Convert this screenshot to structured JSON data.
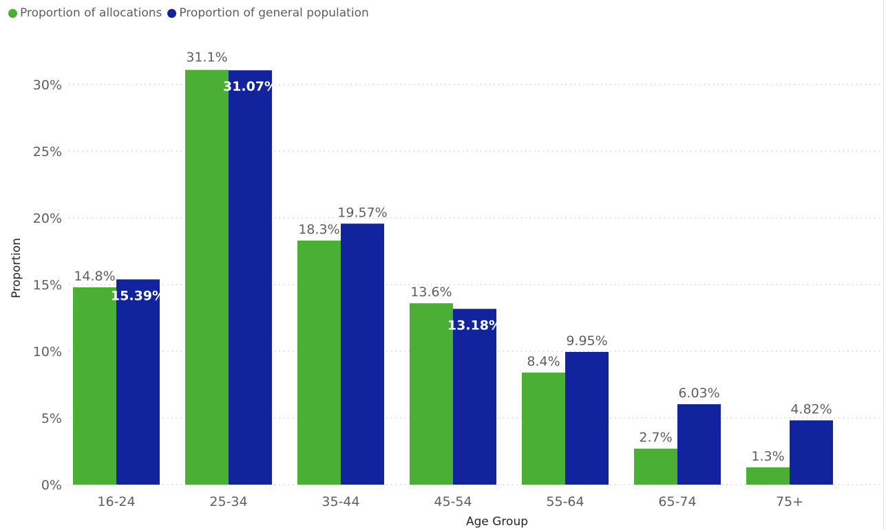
{
  "chart_data": {
    "type": "bar",
    "categories": [
      "16-24",
      "25-34",
      "35-44",
      "45-54",
      "55-64",
      "65-74",
      "75+"
    ],
    "series": [
      {
        "name": "Proportion of allocations",
        "color": "#4caf35",
        "values": [
          14.8,
          31.1,
          18.3,
          13.6,
          8.4,
          2.7,
          1.3
        ],
        "labels": [
          "14.8%",
          "31.1%",
          "18.3%",
          "13.6%",
          "8.4%",
          "2.7%",
          "1.3%"
        ]
      },
      {
        "name": "Proportion of general population",
        "color": "#12239e",
        "values": [
          15.39,
          31.07,
          19.57,
          13.18,
          9.95,
          6.03,
          4.82
        ],
        "labels": [
          "15.39%",
          "31.07%",
          "19.57%",
          "13.18%",
          "9.95%",
          "6.03%",
          "4.82%"
        ]
      }
    ],
    "xlabel": "Age Group",
    "ylabel": "Proportion",
    "ylim": [
      0,
      30
    ],
    "yticks": [
      0,
      5,
      10,
      15,
      20,
      25,
      30
    ],
    "ytick_labels": [
      "0%",
      "5%",
      "10%",
      "15%",
      "20%",
      "25%",
      "30%"
    ],
    "grid": "horizontal dotted",
    "legend_position": "top-left"
  }
}
